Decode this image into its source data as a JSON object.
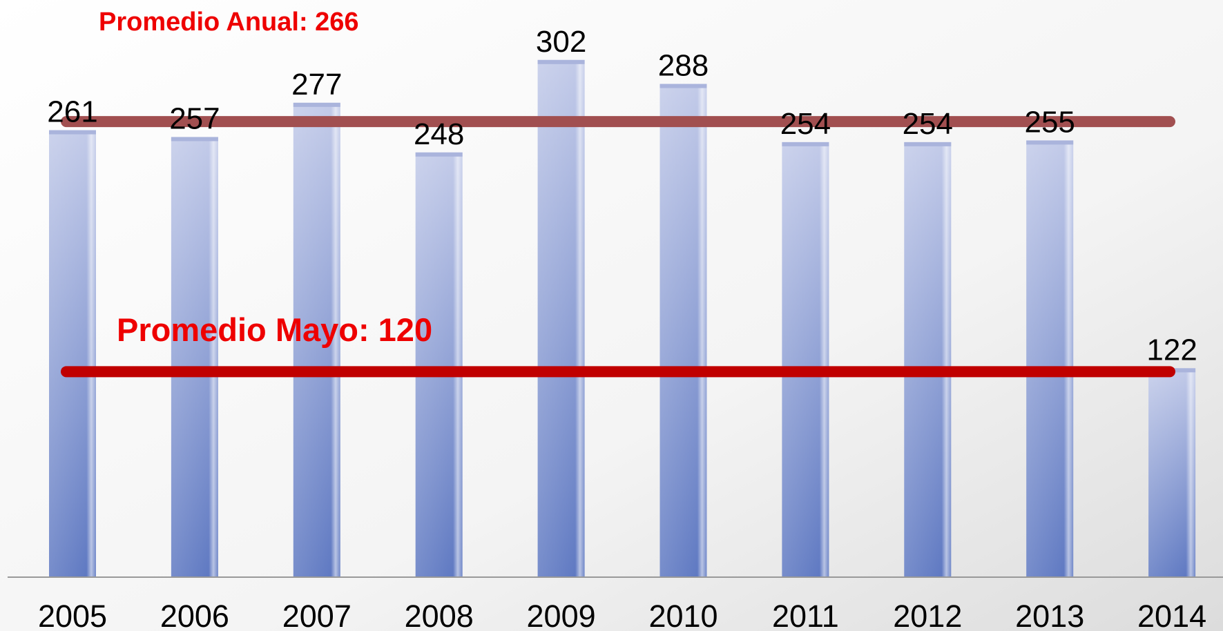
{
  "chart_data": {
    "type": "bar",
    "categories": [
      "2005",
      "2006",
      "2007",
      "2008",
      "2009",
      "2010",
      "2011",
      "2012",
      "2013",
      "2014"
    ],
    "values": [
      261,
      257,
      277,
      248,
      302,
      288,
      254,
      254,
      255,
      122
    ],
    "ylim": [
      0,
      337
    ],
    "reference_lines": [
      {
        "label": "Promedio Anual: 266",
        "value": 266,
        "color": "#a14f50"
      },
      {
        "label": "Promedio Mayo: 120",
        "value": 120,
        "color": "#c00000"
      }
    ]
  }
}
